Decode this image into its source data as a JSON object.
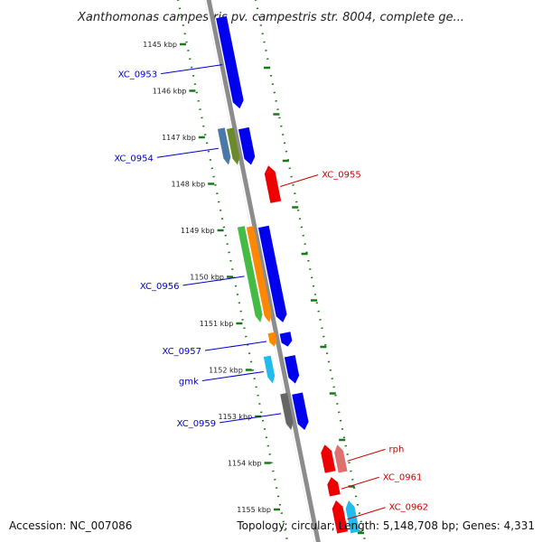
{
  "header": {
    "title": "Xanthomonas campestris pv. campestris str. 8004, complete ge..."
  },
  "footer": {
    "accession": "Accession: NC_007086",
    "summary": "Topology: circular; Length: 5,148,708 bp; Genes: 4,331"
  },
  "colors": {
    "backbone": "#8c8c8c",
    "ticks": "#1a7a1a",
    "forward_label": "#0000cc",
    "reverse_label": "#cc0000",
    "blue": "#0000ee",
    "red": "#ee0000",
    "pink": "#e07070",
    "green": "#44bb44",
    "orange": "#ff8800",
    "cyan": "#22bbee",
    "gray": "#666666",
    "steel": "#4a78a8",
    "olive": "#6b8b2b"
  },
  "axis": {
    "unit": "kbp",
    "ticks": [
      {
        "kbp": 1145,
        "label": "1145 kbp"
      },
      {
        "kbp": 1146,
        "label": "1146 kbp"
      },
      {
        "kbp": 1147,
        "label": "1147 kbp"
      },
      {
        "kbp": 1148,
        "label": "1148 kbp"
      },
      {
        "kbp": 1149,
        "label": "1149 kbp"
      },
      {
        "kbp": 1150,
        "label": "1150 kbp"
      },
      {
        "kbp": 1151,
        "label": "1151 kbp"
      },
      {
        "kbp": 1152,
        "label": "1152 kbp"
      },
      {
        "kbp": 1153,
        "label": "1153 kbp"
      },
      {
        "kbp": 1154,
        "label": "1154 kbp"
      },
      {
        "kbp": 1155,
        "label": "1155 kbp"
      }
    ]
  },
  "genes": [
    {
      "name": "XC_0953",
      "strand": "+",
      "start": 1144.4,
      "end": 1146.4,
      "lane": "blue",
      "color": "blue"
    },
    {
      "name": "XC_0954",
      "strand": "+",
      "start": 1146.8,
      "end": 1147.6,
      "lane": "green",
      "color": "steel"
    },
    {
      "name": "",
      "strand": "+",
      "start": 1146.8,
      "end": 1147.6,
      "lane": "orange",
      "color": "olive"
    },
    {
      "name": "",
      "strand": "+",
      "start": 1146.8,
      "end": 1147.6,
      "lane": "blue",
      "color": "blue"
    },
    {
      "name": "XC_0955",
      "strand": "-",
      "start": 1147.6,
      "end": 1148.4,
      "lane": "red",
      "color": "red"
    },
    {
      "name": "XC_0956",
      "strand": "+",
      "start": 1148.9,
      "end": 1151.0,
      "lane": "green",
      "color": "green"
    },
    {
      "name": "",
      "strand": "+",
      "start": 1148.9,
      "end": 1151.0,
      "lane": "orange",
      "color": "orange"
    },
    {
      "name": "",
      "strand": "+",
      "start": 1148.9,
      "end": 1151.0,
      "lane": "blue",
      "color": "blue"
    },
    {
      "name": "XC_0957",
      "strand": "+",
      "start": 1151.2,
      "end": 1151.5,
      "lane": "orange",
      "color": "orange"
    },
    {
      "name": "",
      "strand": "+",
      "start": 1151.2,
      "end": 1151.5,
      "lane": "blue",
      "color": "blue"
    },
    {
      "name": "gmk",
      "strand": "+",
      "start": 1151.7,
      "end": 1152.3,
      "lane": "green",
      "color": "cyan"
    },
    {
      "name": "",
      "strand": "+",
      "start": 1151.7,
      "end": 1152.3,
      "lane": "blue",
      "color": "blue"
    },
    {
      "name": "XC_0959",
      "strand": "+",
      "start": 1152.5,
      "end": 1153.3,
      "lane": "orange",
      "color": "gray"
    },
    {
      "name": "",
      "strand": "+",
      "start": 1152.5,
      "end": 1153.3,
      "lane": "blue",
      "color": "blue"
    },
    {
      "name": "rph",
      "strand": "-",
      "start": 1153.6,
      "end": 1154.2,
      "lane": "pink",
      "color": "pink"
    },
    {
      "name": "",
      "strand": "-",
      "start": 1153.6,
      "end": 1154.2,
      "lane": "red",
      "color": "red"
    },
    {
      "name": "XC_0961",
      "strand": "-",
      "start": 1154.3,
      "end": 1154.7,
      "lane": "red",
      "color": "red"
    },
    {
      "name": "XC_0962",
      "strand": "-",
      "start": 1154.8,
      "end": 1155.5,
      "lane": "red",
      "color": "red"
    },
    {
      "name": "",
      "strand": "-",
      "start": 1154.8,
      "end": 1155.5,
      "lane": "pink",
      "color": "cyan"
    }
  ]
}
